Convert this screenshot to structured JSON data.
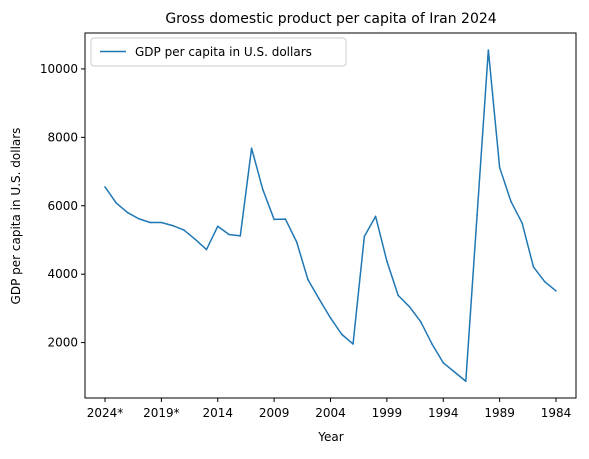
{
  "chart_data": {
    "type": "line",
    "title": "Gross domestic product per capita of Iran 2024",
    "xlabel": "Year",
    "ylabel": "GDP per capita in U.S. dollars",
    "legend_position": "upper-left",
    "grid": false,
    "x": [
      "2024*",
      "2023*",
      "2022*",
      "2021*",
      "2020*",
      "2019*",
      "2018",
      "2017",
      "2016",
      "2015",
      "2014",
      "2013",
      "2012",
      "2011",
      "2010",
      "2009",
      "2008",
      "2007",
      "2006",
      "2005",
      "2004",
      "2003",
      "2002",
      "2001",
      "2000",
      "1999",
      "1998",
      "1997",
      "1996",
      "1995",
      "1994",
      "1993",
      "1992",
      "1991",
      "1990",
      "1989",
      "1988",
      "1987",
      "1986",
      "1985",
      "1984"
    ],
    "x_ticks": [
      "2024*",
      "2019*",
      "2014",
      "2009",
      "2004",
      "1999",
      "1994",
      "1989",
      "1984"
    ],
    "y_ticks": [
      2000,
      4000,
      6000,
      8000,
      10000
    ],
    "ylim": [
      380,
      11050
    ],
    "series": [
      {
        "name": "GDP per capita in U.S. dollars",
        "color": "#1f77b4",
        "values": [
          6550,
          6080,
          5800,
          5620,
          5510,
          5510,
          5420,
          5290,
          5020,
          4720,
          5400,
          5160,
          5120,
          7680,
          6470,
          5600,
          5610,
          4940,
          3840,
          3270,
          2720,
          2240,
          1960,
          5100,
          5690,
          4380,
          3380,
          3050,
          2610,
          1960,
          1410,
          1140,
          870,
          5720,
          10550,
          7120,
          6130,
          5490,
          4210,
          3780,
          3510
        ]
      }
    ]
  }
}
